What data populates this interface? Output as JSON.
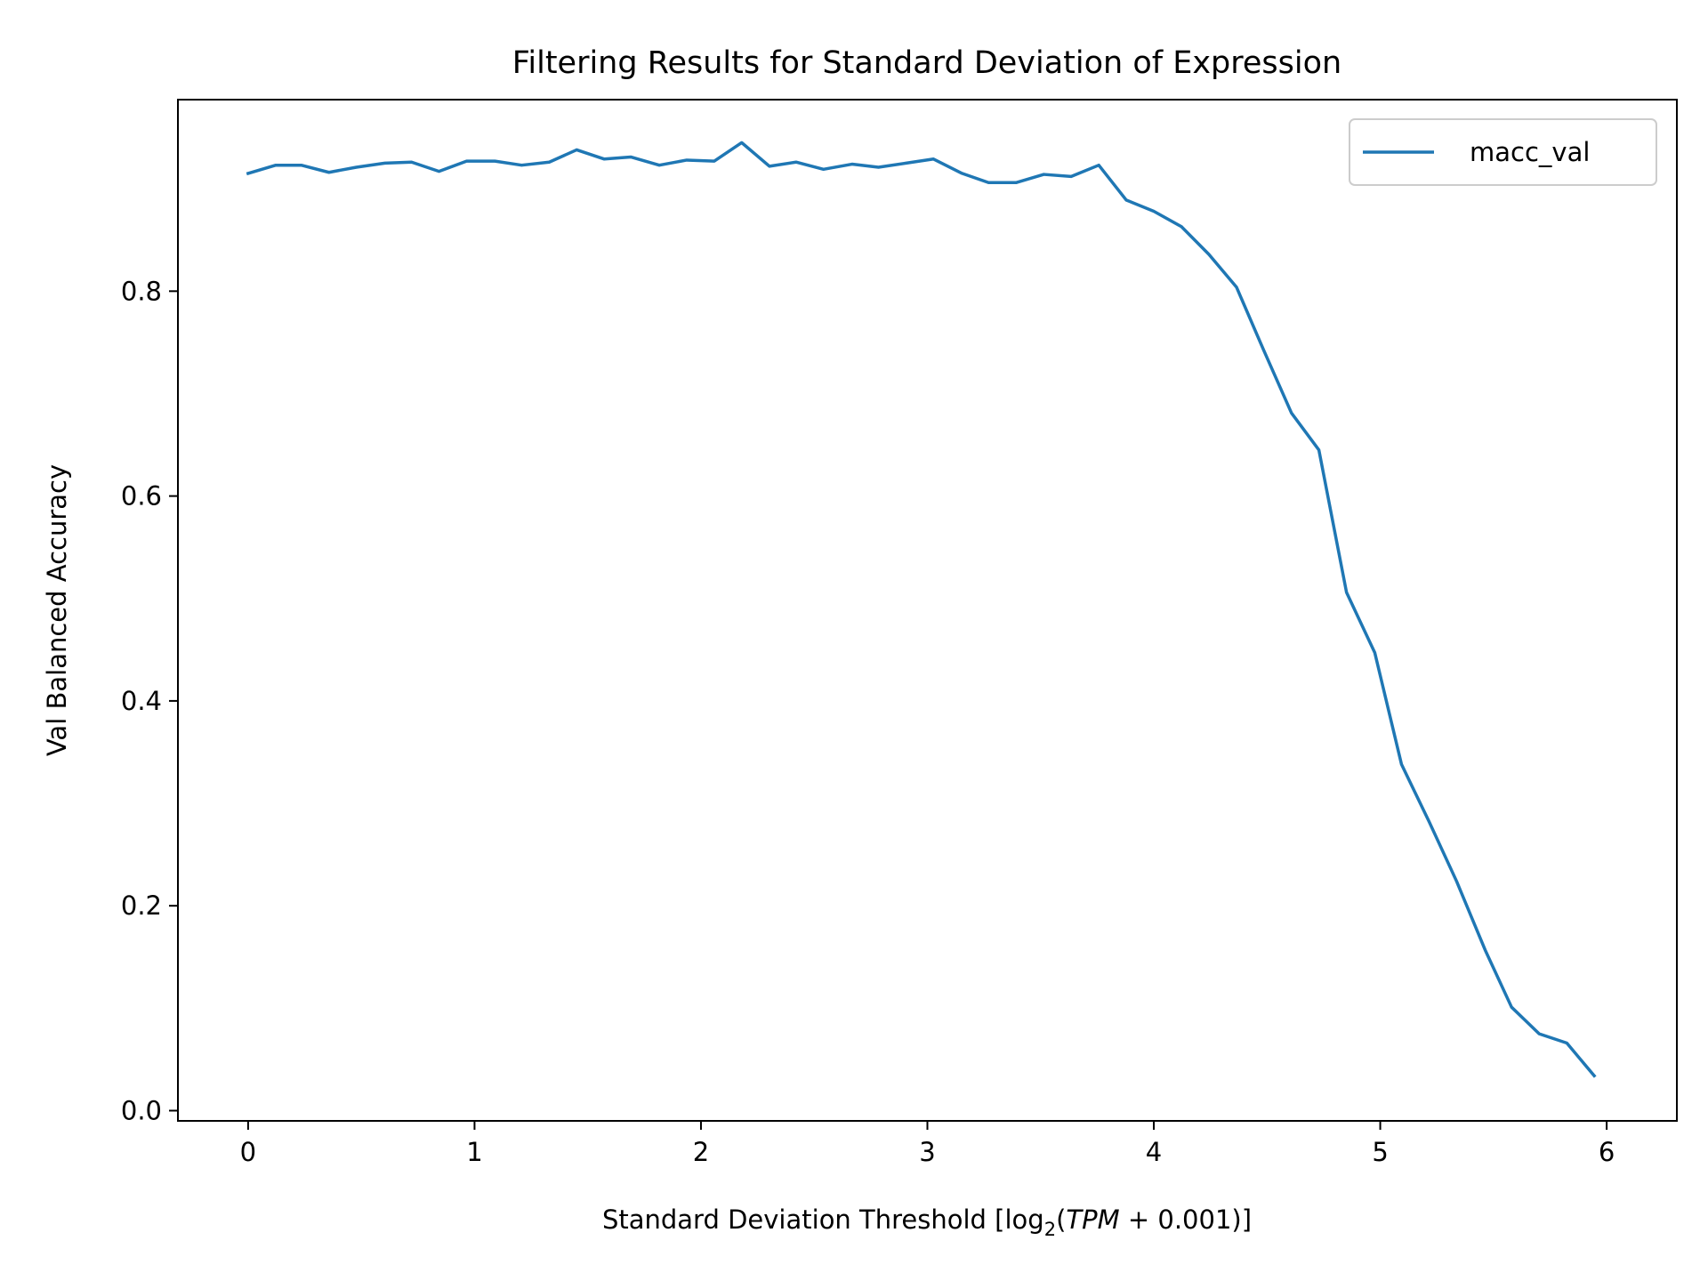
{
  "chart_data": {
    "type": "line",
    "title": "Filtering Results for Standard Deviation of Expression",
    "xlabel": {
      "prefix": "Standard Deviation Threshold [log",
      "subscript": "2",
      "open": "(",
      "italic": "TPM",
      "suffix": " + 0.001)]"
    },
    "ylabel": "Val Balanced Accuracy",
    "xlim": [
      -0.31,
      6.31
    ],
    "ylim": [
      -0.01,
      0.987
    ],
    "xticks": [
      0,
      1,
      2,
      3,
      4,
      5,
      6
    ],
    "xtick_labels": [
      "0",
      "1",
      "2",
      "3",
      "4",
      "5",
      "6"
    ],
    "yticks": [
      0.0,
      0.2,
      0.4,
      0.6,
      0.8
    ],
    "ytick_labels": [
      "0.0",
      "0.2",
      "0.4",
      "0.6",
      "0.8"
    ],
    "grid": false,
    "legend": {
      "position": "top-right"
    },
    "series": [
      {
        "name": "macc_val",
        "color": "#1f77b4",
        "x": [
          0.0,
          0.122,
          0.235,
          0.357,
          0.478,
          0.604,
          0.722,
          0.843,
          0.965,
          1.09,
          1.208,
          1.33,
          1.451,
          1.573,
          1.69,
          1.816,
          1.937,
          2.059,
          2.18,
          2.302,
          2.42,
          2.541,
          2.667,
          2.784,
          2.906,
          3.027,
          3.153,
          3.27,
          3.392,
          3.514,
          3.635,
          3.757,
          3.878,
          4.0,
          4.122,
          4.243,
          4.365,
          4.486,
          4.608,
          4.729,
          4.851,
          4.976,
          5.094,
          5.216,
          5.337,
          5.463,
          5.58,
          5.702,
          5.824,
          5.945
        ],
        "y": [
          0.915,
          0.923,
          0.923,
          0.916,
          0.921,
          0.925,
          0.926,
          0.917,
          0.927,
          0.927,
          0.923,
          0.926,
          0.938,
          0.929,
          0.931,
          0.923,
          0.928,
          0.927,
          0.945,
          0.922,
          0.926,
          0.919,
          0.924,
          0.921,
          0.925,
          0.929,
          0.915,
          0.906,
          0.906,
          0.914,
          0.912,
          0.923,
          0.889,
          0.878,
          0.863,
          0.836,
          0.804,
          0.742,
          0.681,
          0.645,
          0.506,
          0.447,
          0.338,
          0.282,
          0.224,
          0.157,
          0.101,
          0.075,
          0.066,
          0.034
        ]
      }
    ]
  }
}
